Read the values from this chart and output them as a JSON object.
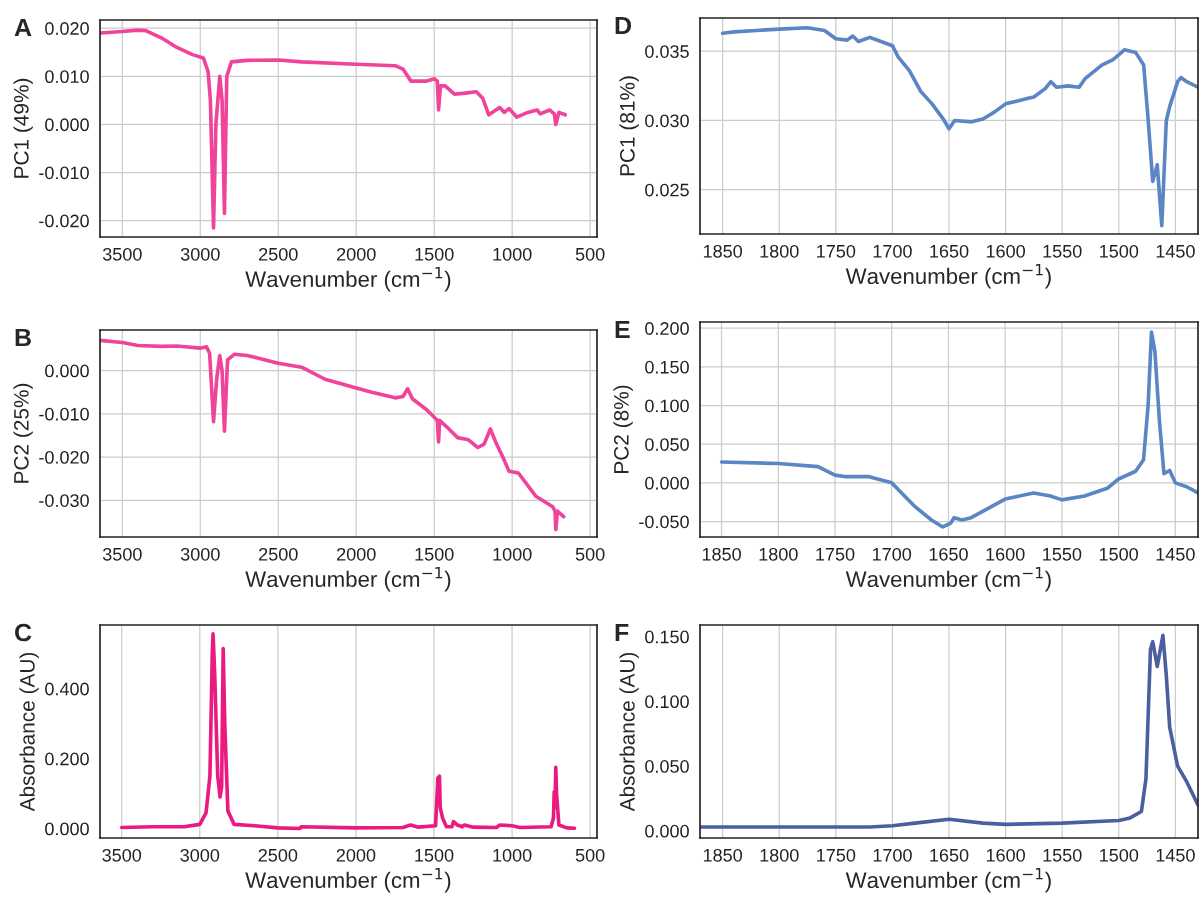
{
  "chart_data": [
    {
      "type": "line",
      "title": "A",
      "xlabel": "Wavenumber (cm$^{−1}$)",
      "ylabel": "PC1 (49%)",
      "grid": true,
      "xlim": [
        3643,
        456
      ],
      "xticks": [
        3500,
        3000,
        2500,
        2000,
        1500,
        1000,
        500
      ],
      "ylim": [
        -0.0234,
        0.0217
      ],
      "yticks": [
        {
          "value": -0.02,
          "label": "-0.020"
        },
        {
          "value": -0.01,
          "label": "-0.010"
        },
        {
          "value": 0,
          "label": "0.000"
        },
        {
          "value": 0.01,
          "label": "0.010"
        },
        {
          "value": 0.02,
          "label": "0.020"
        }
      ],
      "series": [
        {
          "color": "#f0449b",
          "x": [
            3643,
            3500,
            3400,
            3350,
            3250,
            3150,
            3050,
            2980,
            2950,
            2935,
            2915,
            2900,
            2875,
            2860,
            2845,
            2830,
            2800,
            2700,
            2500,
            2350,
            2000,
            1750,
            1700,
            1650,
            1550,
            1500,
            1480,
            1472,
            1460,
            1430,
            1370,
            1300,
            1230,
            1190,
            1150,
            1080,
            1050,
            1020,
            970,
            900,
            840,
            820,
            760,
            730,
            720,
            700,
            660
          ],
          "values": [
            0.019,
            0.0193,
            0.0196,
            0.0195,
            0.018,
            0.016,
            0.0145,
            0.0138,
            0.011,
            0.005,
            -0.0215,
            0.0,
            0.01,
            0.005,
            -0.0185,
            0.01,
            0.013,
            0.0133,
            0.0134,
            0.013,
            0.0125,
            0.0122,
            0.0115,
            0.009,
            0.009,
            0.0095,
            0.009,
            0.003,
            0.008,
            0.008,
            0.0063,
            0.0065,
            0.0068,
            0.0055,
            0.002,
            0.0035,
            0.0025,
            0.0033,
            0.0015,
            0.0025,
            0.003,
            0.0022,
            0.003,
            0.0022,
            0.0,
            0.0025,
            0.002
          ]
        }
      ]
    },
    {
      "type": "line",
      "title": "D",
      "xlabel": "Wavenumber (cm$^{−1}$)",
      "ylabel": "PC1 (81%)",
      "grid": true,
      "xlim": [
        1870,
        1430
      ],
      "xticks": [
        1850,
        1800,
        1750,
        1700,
        1650,
        1600,
        1550,
        1500,
        1450
      ],
      "ylim": [
        0.0218,
        0.0374
      ],
      "yticks": [
        {
          "value": 0.025,
          "label": "0.025"
        },
        {
          "value": 0.03,
          "label": "0.030"
        },
        {
          "value": 0.035,
          "label": "0.035"
        }
      ],
      "series": [
        {
          "color": "#5b86c4",
          "x": [
            1850,
            1840,
            1820,
            1800,
            1775,
            1760,
            1750,
            1740,
            1735,
            1730,
            1720,
            1710,
            1700,
            1695,
            1685,
            1675,
            1665,
            1655,
            1650,
            1645,
            1630,
            1620,
            1610,
            1600,
            1580,
            1575,
            1565,
            1560,
            1555,
            1545,
            1535,
            1530,
            1515,
            1505,
            1495,
            1485,
            1478,
            1474,
            1470,
            1466,
            1462,
            1458,
            1455,
            1448,
            1445,
            1440,
            1430
          ],
          "values": [
            0.0363,
            0.0364,
            0.0365,
            0.0366,
            0.0367,
            0.0365,
            0.0359,
            0.0358,
            0.0361,
            0.0357,
            0.036,
            0.0357,
            0.0354,
            0.0346,
            0.0336,
            0.0321,
            0.0312,
            0.0301,
            0.0294,
            0.03,
            0.0299,
            0.0301,
            0.0306,
            0.0312,
            0.0316,
            0.0317,
            0.0323,
            0.0328,
            0.0324,
            0.0325,
            0.0324,
            0.033,
            0.034,
            0.0344,
            0.0351,
            0.0349,
            0.034,
            0.03,
            0.0256,
            0.0268,
            0.0224,
            0.03,
            0.031,
            0.0328,
            0.0331,
            0.0328,
            0.0324
          ]
        }
      ]
    },
    {
      "type": "line",
      "title": "B",
      "xlabel": "Wavenumber (cm$^{−1}$)",
      "ylabel": "PC2 (25%)",
      "grid": true,
      "xlim": [
        3643,
        456
      ],
      "xticks": [
        3500,
        3000,
        2500,
        2000,
        1500,
        1000,
        500
      ],
      "ylim": [
        -0.0385,
        0.0094
      ],
      "yticks": [
        {
          "value": -0.03,
          "label": "-0.030"
        },
        {
          "value": -0.02,
          "label": "-0.020"
        },
        {
          "value": -0.01,
          "label": "-0.010"
        },
        {
          "value": 0,
          "label": "0.000"
        }
      ],
      "series": [
        {
          "color": "#f0449b",
          "x": [
            3643,
            3500,
            3400,
            3250,
            3150,
            3000,
            2960,
            2940,
            2915,
            2895,
            2875,
            2860,
            2845,
            2825,
            2780,
            2700,
            2500,
            2350,
            2200,
            2000,
            1900,
            1750,
            1700,
            1670,
            1640,
            1550,
            1480,
            1472,
            1465,
            1420,
            1350,
            1280,
            1220,
            1180,
            1140,
            1100,
            1060,
            1020,
            960,
            850,
            740,
            725,
            720,
            710,
            670
          ],
          "values": [
            0.007,
            0.0065,
            0.0058,
            0.0056,
            0.0057,
            0.0052,
            0.0055,
            0.004,
            -0.0118,
            -0.002,
            0.0035,
            0.0,
            -0.014,
            0.0025,
            0.0038,
            0.0035,
            0.0017,
            0.0008,
            -0.002,
            -0.004,
            -0.005,
            -0.0063,
            -0.006,
            -0.0042,
            -0.0065,
            -0.009,
            -0.0115,
            -0.0165,
            -0.0115,
            -0.013,
            -0.0155,
            -0.016,
            -0.0178,
            -0.017,
            -0.0135,
            -0.017,
            -0.02,
            -0.0233,
            -0.0237,
            -0.029,
            -0.0315,
            -0.0325,
            -0.0368,
            -0.0325,
            -0.0338
          ]
        }
      ]
    },
    {
      "type": "line",
      "title": "E",
      "xlabel": "Wavenumber (cm$^{−1}$)",
      "ylabel": "PC2 (8%)",
      "grid": true,
      "xlim": [
        1869,
        1430
      ],
      "xticks": [
        1850,
        1800,
        1750,
        1700,
        1650,
        1600,
        1550,
        1500,
        1450
      ],
      "ylim": [
        -0.07,
        0.208
      ],
      "yticks": [
        {
          "value": -0.05,
          "label": "-0.050"
        },
        {
          "value": 0,
          "label": "0.000"
        },
        {
          "value": 0.05,
          "label": "0.050"
        },
        {
          "value": 0.1,
          "label": "0.100"
        },
        {
          "value": 0.15,
          "label": "0.150"
        },
        {
          "value": 0.2,
          "label": "0.200"
        }
      ],
      "series": [
        {
          "color": "#5b86c4",
          "x": [
            1850,
            1800,
            1765,
            1750,
            1740,
            1720,
            1700,
            1690,
            1680,
            1665,
            1655,
            1648,
            1645,
            1638,
            1630,
            1615,
            1600,
            1575,
            1560,
            1550,
            1530,
            1510,
            1500,
            1485,
            1478,
            1474,
            1471,
            1468,
            1464,
            1460,
            1455,
            1450,
            1440,
            1430
          ],
          "values": [
            0.027,
            0.025,
            0.021,
            0.01,
            0.008,
            0.008,
            0.0,
            -0.015,
            -0.03,
            -0.048,
            -0.057,
            -0.052,
            -0.045,
            -0.048,
            -0.045,
            -0.033,
            -0.021,
            -0.013,
            -0.017,
            -0.022,
            -0.017,
            -0.007,
            0.005,
            0.015,
            0.03,
            0.1,
            0.195,
            0.17,
            0.08,
            0.012,
            0.016,
            0.0,
            -0.005,
            -0.013
          ]
        }
      ]
    },
    {
      "type": "line",
      "title": "C",
      "xlabel": "Wavenumber (cm$^{−1}$)",
      "ylabel": "Absorbance (AU)",
      "grid": "x",
      "xlim": [
        3639,
        456
      ],
      "xticks": [
        3500,
        3000,
        2500,
        2000,
        1500,
        1000,
        500
      ],
      "ylim": [
        -0.027,
        0.582
      ],
      "yticks": [
        {
          "value": 0,
          "label": "0.000"
        },
        {
          "value": 0.2,
          "label": "0.200"
        },
        {
          "value": 0.4,
          "label": "0.400"
        }
      ],
      "series": [
        {
          "color": "#ea1a7e",
          "x": [
            3500,
            3300,
            3100,
            3000,
            2960,
            2935,
            2920,
            2915,
            2905,
            2885,
            2870,
            2860,
            2850,
            2840,
            2820,
            2780,
            2650,
            2500,
            2360,
            2350,
            2000,
            1700,
            1650,
            1600,
            1490,
            1475,
            1465,
            1460,
            1445,
            1420,
            1385,
            1375,
            1350,
            1320,
            1305,
            1250,
            1100,
            1080,
            1000,
            950,
            750,
            735,
            730,
            725,
            720,
            715,
            700,
            650,
            600
          ],
          "values": [
            0.003,
            0.005,
            0.005,
            0.012,
            0.045,
            0.15,
            0.5,
            0.557,
            0.45,
            0.15,
            0.09,
            0.12,
            0.515,
            0.3,
            0.05,
            0.012,
            0.008,
            0.002,
            0.0,
            0.005,
            0.002,
            0.003,
            0.01,
            0.004,
            0.008,
            0.145,
            0.15,
            0.06,
            0.03,
            0.005,
            0.005,
            0.02,
            0.01,
            0.005,
            0.01,
            0.004,
            0.003,
            0.01,
            0.008,
            0.003,
            0.005,
            0.03,
            0.105,
            0.06,
            0.175,
            0.1,
            0.01,
            0.002,
            0.001
          ]
        }
      ]
    },
    {
      "type": "line",
      "title": "F",
      "xlabel": "Wavenumber (cm$^{−1}$)",
      "ylabel": "Absorbance (AU)",
      "grid": "x",
      "xlim": [
        1870,
        1430
      ],
      "xticks": [
        1850,
        1800,
        1750,
        1700,
        1650,
        1600,
        1550,
        1500,
        1450
      ],
      "ylim": [
        -0.0055,
        0.159
      ],
      "yticks": [
        {
          "value": 0,
          "label": "0.000"
        },
        {
          "value": 0.05,
          "label": "0.050"
        },
        {
          "value": 0.1,
          "label": "0.100"
        },
        {
          "value": 0.15,
          "label": "0.150"
        }
      ],
      "series": [
        {
          "color": "#4b5fa0",
          "x": [
            1870,
            1800,
            1720,
            1700,
            1680,
            1650,
            1620,
            1600,
            1550,
            1500,
            1490,
            1480,
            1476,
            1472,
            1470,
            1466,
            1461,
            1458,
            1455,
            1448,
            1440,
            1430
          ],
          "values": [
            0.003,
            0.003,
            0.003,
            0.004,
            0.006,
            0.009,
            0.006,
            0.005,
            0.006,
            0.008,
            0.01,
            0.015,
            0.04,
            0.14,
            0.146,
            0.127,
            0.151,
            0.12,
            0.08,
            0.05,
            0.038,
            0.02
          ]
        }
      ]
    }
  ]
}
